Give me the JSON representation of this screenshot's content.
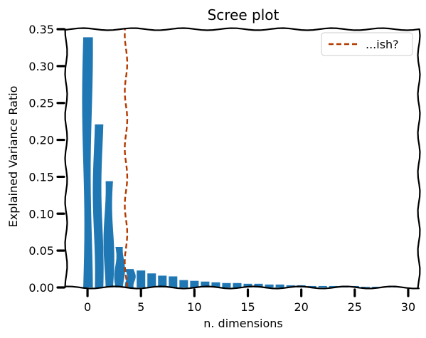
{
  "chart_data": {
    "type": "bar",
    "title": "Scree plot",
    "xlabel": "n. dimensions",
    "ylabel": "Explained Variance Ratio",
    "x": [
      0,
      1,
      2,
      3,
      4,
      5,
      6,
      7,
      8,
      9,
      10,
      11,
      12,
      13,
      14,
      15,
      16,
      17,
      18,
      19,
      20,
      21,
      22,
      23,
      24,
      25,
      26,
      27,
      28,
      29
    ],
    "values": [
      0.339,
      0.221,
      0.144,
      0.055,
      0.025,
      0.023,
      0.019,
      0.016,
      0.015,
      0.01,
      0.009,
      0.008,
      0.007,
      0.006,
      0.006,
      0.005,
      0.005,
      0.004,
      0.004,
      0.003,
      0.003,
      0.002,
      0.002,
      0.002,
      0.002,
      0.002,
      0.001,
      0.001,
      0.001,
      0.001
    ],
    "xlim": [
      -2,
      31
    ],
    "ylim": [
      0,
      0.35
    ],
    "xticks": [
      0,
      5,
      10,
      15,
      20,
      25,
      30
    ],
    "xtick_labels": [
      "0",
      "5",
      "10",
      "15",
      "20",
      "25",
      "30"
    ],
    "yticks": [
      0,
      0.05,
      0.1,
      0.15,
      0.2,
      0.25,
      0.3,
      0.35
    ],
    "ytick_labels": [
      "0.00",
      "0.05",
      "0.10",
      "0.15",
      "0.20",
      "0.25",
      "0.30",
      "0.35"
    ],
    "bar_color": "#1f77b4",
    "reference_line": {
      "x": 3.6,
      "label": "...ish?",
      "color": "#b33a00",
      "style": "dashed"
    },
    "legend": {
      "position": "top-right",
      "entries": [
        "...ish?"
      ]
    },
    "grid": false
  }
}
